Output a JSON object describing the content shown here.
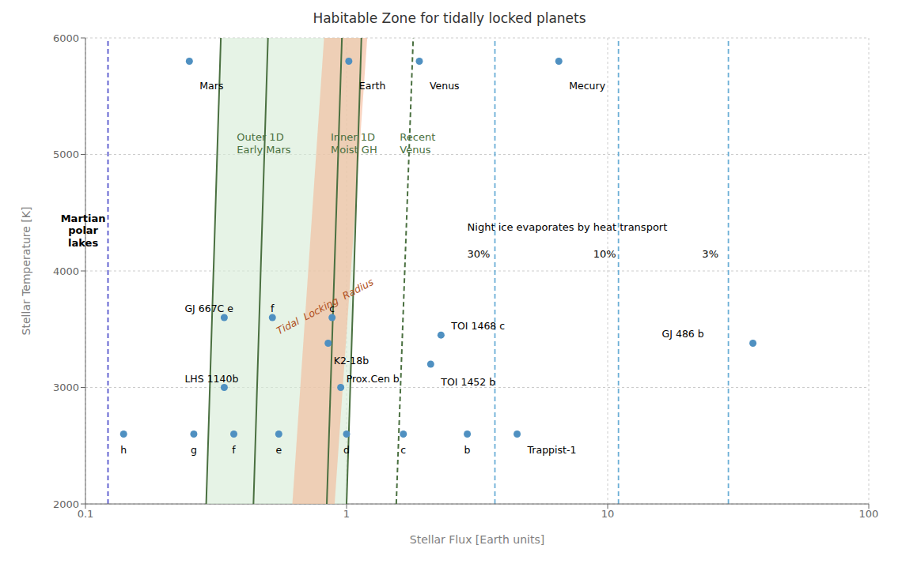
{
  "chart_data": {
    "type": "scatter",
    "title": "Habitable Zone for tidally locked planets",
    "x_label": "Stellar Flux [Earth units]",
    "y_label": "Stellar Temperature [K]",
    "log": "x",
    "xlim": [
      0.1,
      100.0
    ],
    "xticks": [
      0.1,
      1,
      10,
      100
    ],
    "ylim": [
      2000,
      6000
    ],
    "yticks": [
      2000,
      3000,
      4000,
      5000,
      6000
    ],
    "grid": true,
    "points": {
      "color": "#4f90c1",
      "labels": [
        "Mars",
        "Earth",
        "Venus",
        "Mecury",
        "GJ 667C e",
        "f",
        "c",
        "K2-18b",
        "LHS 1140b",
        "Prox.Cen b",
        "TOI 1468 c",
        "TOI 1452 b",
        "GJ 486 b",
        "h",
        "g",
        "f",
        "e",
        "d",
        "c",
        "b",
        "Trappist-1"
      ],
      "x": [
        0.25,
        1.02,
        1.9,
        6.5,
        0.34,
        0.52,
        0.88,
        0.85,
        0.34,
        0.95,
        2.3,
        2.1,
        36.0,
        0.14,
        0.26,
        0.37,
        0.55,
        1.0,
        1.65,
        2.9,
        4.5
      ],
      "y": [
        5800,
        5800,
        5800,
        5800,
        3600,
        3600,
        3600,
        3380,
        3000,
        3000,
        3450,
        3200,
        3380,
        2600,
        2600,
        2600,
        2600,
        2600,
        2600,
        2600,
        2600
      ]
    },
    "bands": [
      {
        "x_left": [
          0.29,
          0.33
        ],
        "x_right": [
          1.0,
          1.14
        ],
        "y": [
          2000,
          6000
        ],
        "color": "#d8edd8"
      },
      {
        "x_left": [
          0.62,
          0.82
        ],
        "x_right": [
          0.9,
          1.2
        ],
        "y": [
          2000,
          6000
        ],
        "color": "#f4b896"
      }
    ],
    "lines": [
      {
        "x": [
          0.29,
          0.33
        ],
        "y": [
          2000,
          6000
        ],
        "color": "#4a7040",
        "line_style": "solid"
      },
      {
        "x": [
          0.44,
          0.5
        ],
        "y": [
          2000,
          6000
        ],
        "color": "#4a7040",
        "line_style": "solid"
      },
      {
        "x": [
          0.84,
          0.96
        ],
        "y": [
          2000,
          6000
        ],
        "color": "#4a7040",
        "line_style": "solid"
      },
      {
        "x": [
          1.0,
          1.14
        ],
        "y": [
          2000,
          6000
        ],
        "color": "#4a7040",
        "line_style": "solid"
      },
      {
        "x": [
          1.55,
          1.8
        ],
        "y": [
          2000,
          6000
        ],
        "color": "#4a7040",
        "line_style": "dashed"
      }
    ],
    "vlines": [
      {
        "x": 0.122,
        "color": "#5555cc",
        "line_style": "dashed"
      },
      {
        "x": 3.7,
        "color": "#6baed6",
        "line_style": "dashed"
      },
      {
        "x": 11.0,
        "color": "#6baed6",
        "line_style": "dashed"
      },
      {
        "x": 29.0,
        "color": "#6baed6",
        "line_style": "dashed"
      }
    ],
    "annotations": [
      {
        "text": "Outer 1D\nEarly Mars",
        "x": 0.38,
        "y": 5100,
        "color": "#4a7040"
      },
      {
        "text": "Inner 1D\nMoist GH",
        "x": 0.87,
        "y": 5100,
        "color": "#4a7040"
      },
      {
        "text": "Tidal  Locking  Radius",
        "x": 0.8251,
        "y": 3700,
        "color": "#b05020"
      },
      {
        "text": "Recent\nVenus",
        "x": 1.6,
        "y": 5100,
        "color": "#4a7040"
      },
      {
        "text": "Martian\npolar\nlakes",
        "x": 0.098,
        "y": 4350,
        "color": "#000000"
      },
      {
        "text": "30%",
        "x": 2.9,
        "y": 4150,
        "color": "#000000"
      },
      {
        "text": "10%",
        "x": 8.8,
        "y": 4150,
        "color": "#000000"
      },
      {
        "text": "3%",
        "x": 23.0,
        "y": 4150,
        "color": "#000000"
      },
      {
        "text": "Night ice evaporates by heat transport",
        "x": 2.9,
        "y": 4380,
        "color": "#000000"
      }
    ]
  }
}
